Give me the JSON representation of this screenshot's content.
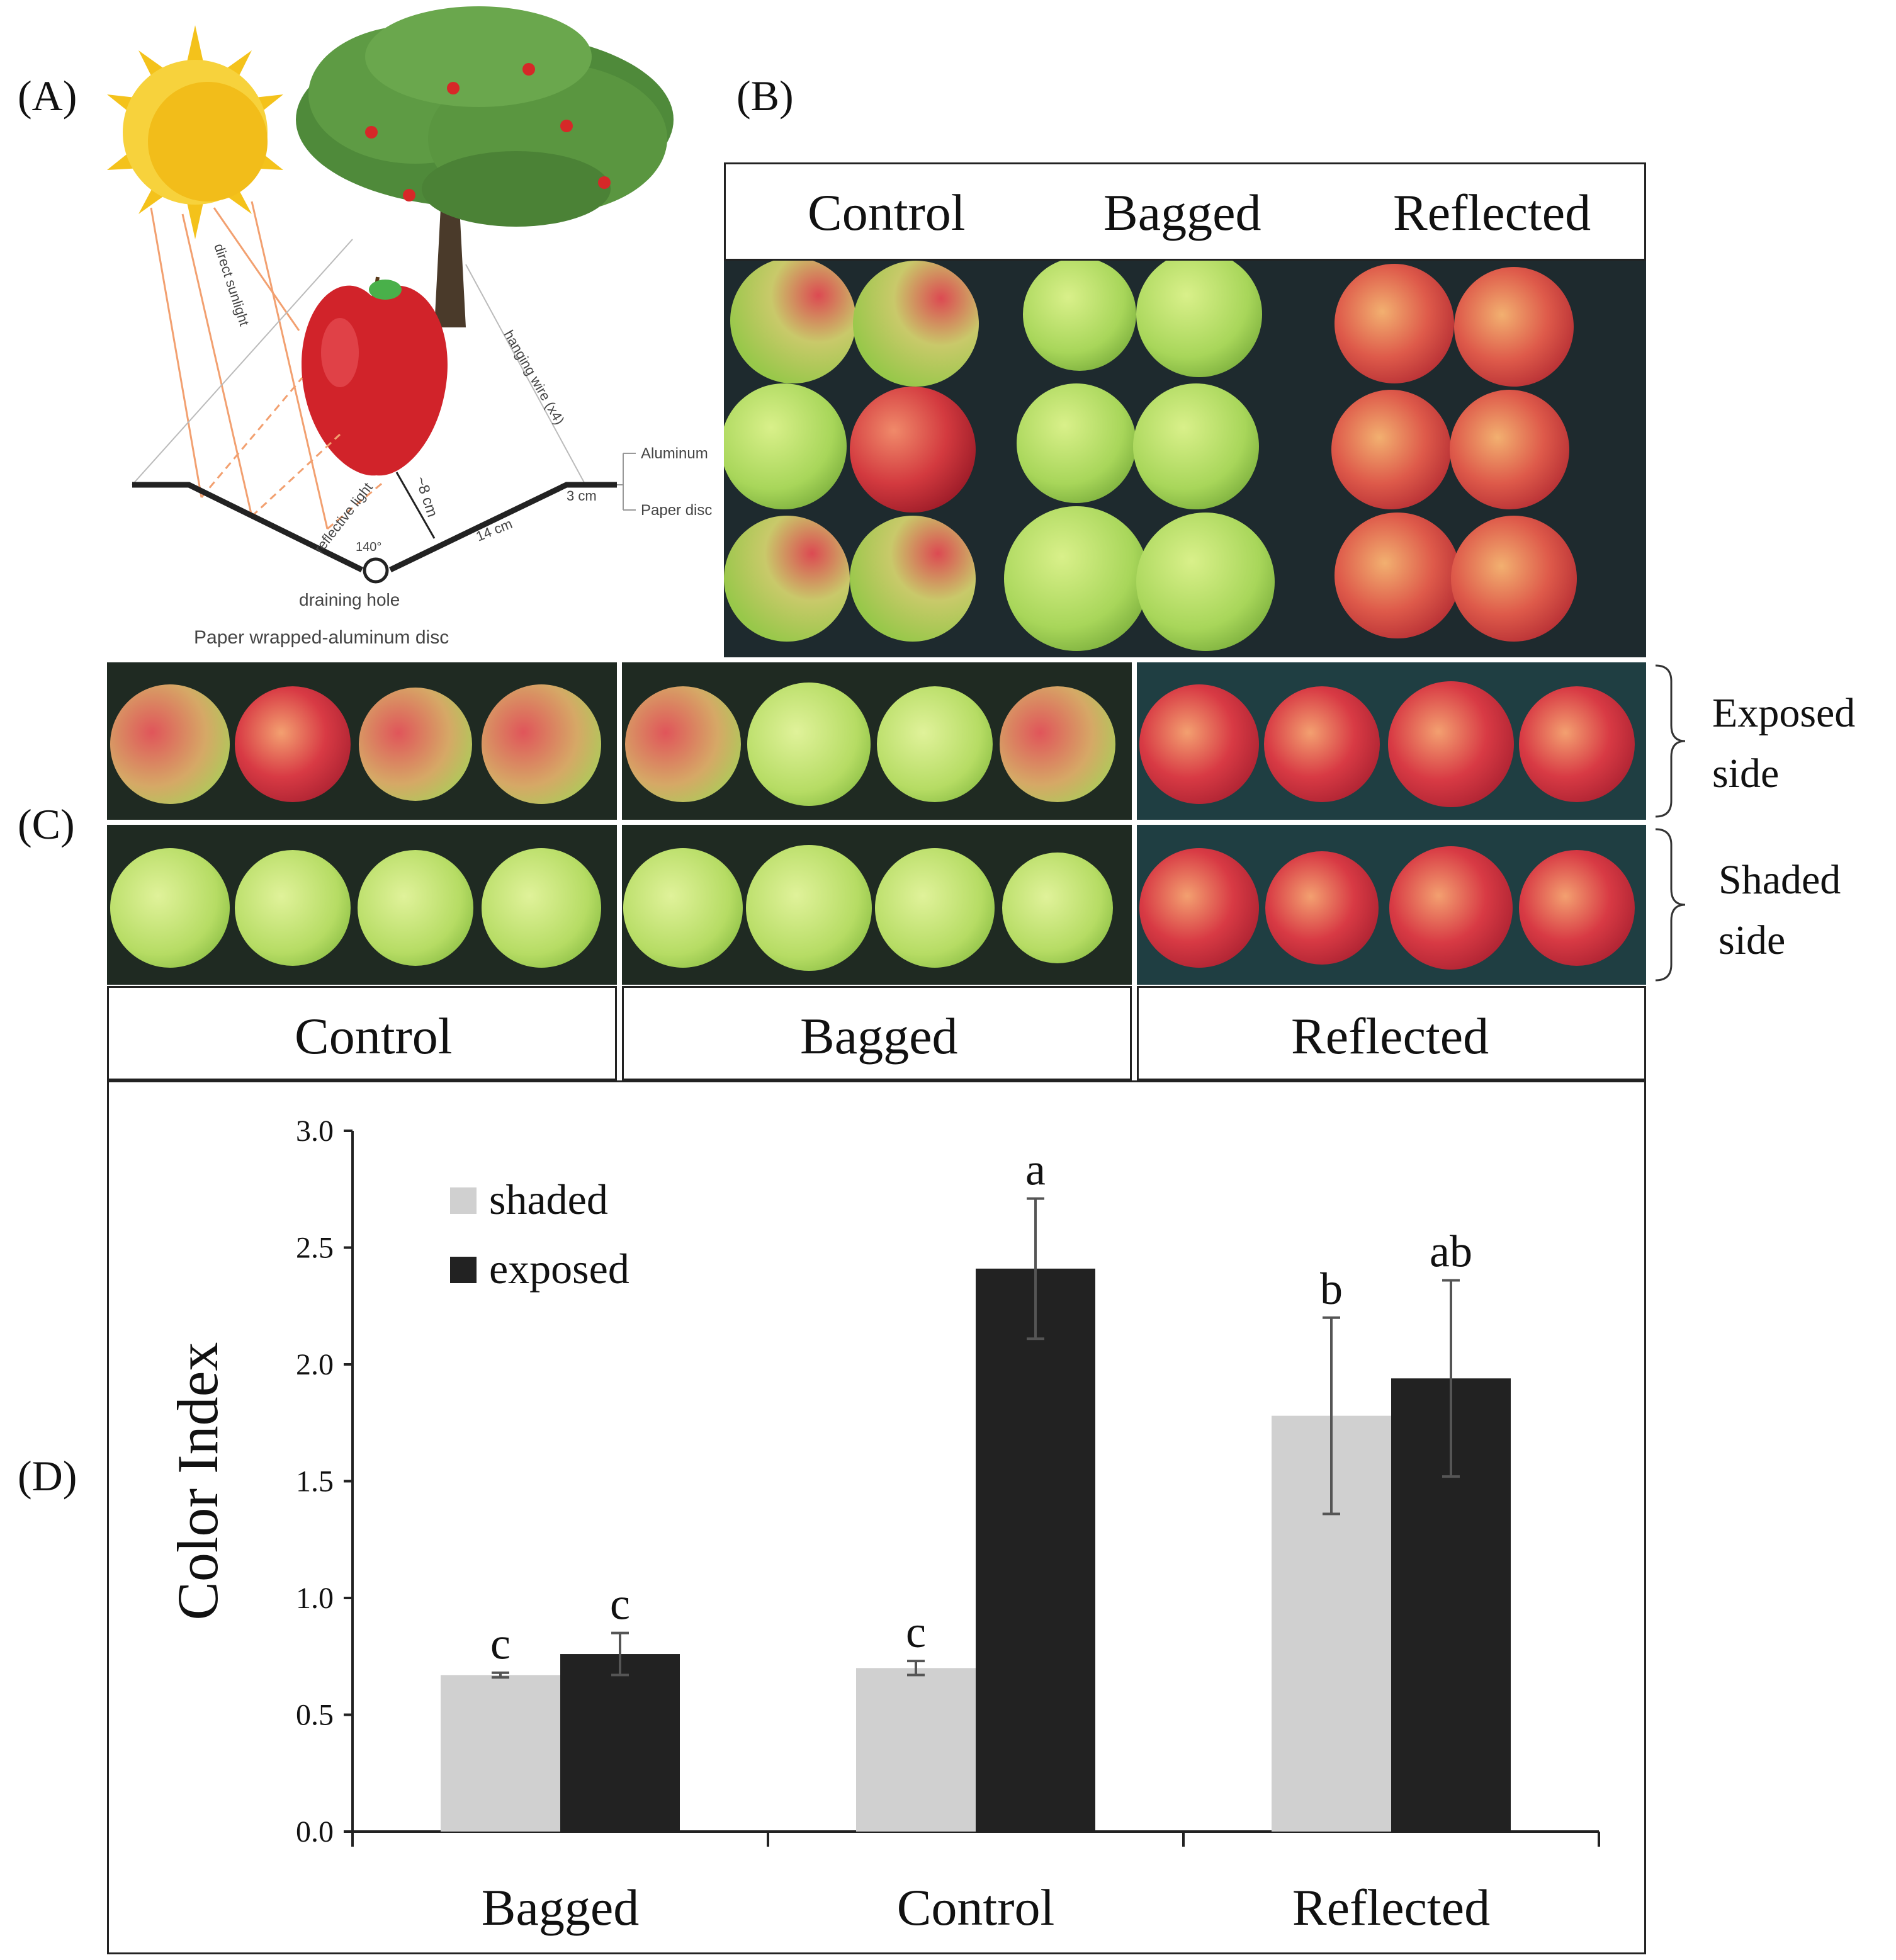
{
  "panels": {
    "a": "(A)",
    "b": "(B)",
    "c": "(C)",
    "d": "(D)"
  },
  "diagram_a": {
    "direct_sunlight": "direct sunlight",
    "hanging_wire": "hanging wire (x4)",
    "reflective_light": "reflective light",
    "depth": "~8 cm",
    "aluminum": "Aluminum",
    "paper_disc": "Paper disc",
    "rim": "3 cm",
    "slope": "14 cm",
    "angle": "140°",
    "hole": "draining hole",
    "caption": "Paper wrapped-aluminum disc"
  },
  "photo_b": {
    "headers": [
      "Control",
      "Bagged",
      "Reflected"
    ]
  },
  "photo_c": {
    "row_labels": {
      "exposed": [
        "Exposed",
        "side"
      ],
      "shaded": [
        "Shaded",
        "side"
      ]
    },
    "footers": [
      "Control",
      "Bagged",
      "Reflected"
    ]
  },
  "colors": {
    "shaded": "#d0d0d0",
    "exposed": "#222222",
    "background_photo": "#1e2a2e",
    "apple_red": "#d33a3f",
    "apple_green": "#a8d65a"
  },
  "chart_data": {
    "type": "bar",
    "categories": [
      "Bagged",
      "Control",
      "Reflected"
    ],
    "series": [
      {
        "name": "shaded",
        "values": [
          0.67,
          0.7,
          1.78
        ],
        "errors": [
          0.01,
          0.03,
          0.42
        ],
        "letters": [
          "c",
          "c",
          "b"
        ]
      },
      {
        "name": "exposed",
        "values": [
          0.76,
          2.41,
          1.94
        ],
        "errors": [
          0.09,
          0.3,
          0.42
        ],
        "letters": [
          "c",
          "a",
          "ab"
        ]
      }
    ],
    "ylabel": "Color Index",
    "xlabel": "",
    "ylim": [
      0,
      3.0
    ],
    "yticks": [
      "0.0",
      "0.5",
      "1.0",
      "1.5",
      "2.0",
      "2.5",
      "3.0"
    ],
    "legend_placement": "top-left",
    "grid": false
  }
}
